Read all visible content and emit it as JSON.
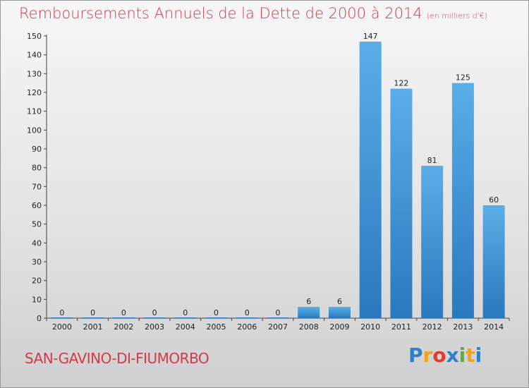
{
  "header": {
    "title": "Remboursements Annuels de la Dette de 2000 à 2014",
    "unit": "(en milliers d'€)"
  },
  "footer": {
    "commune": "SAN-GAVINO-DI-FIUMORBO",
    "logo": {
      "letters": [
        "P",
        "r",
        "o",
        "x",
        "i",
        "t",
        "i"
      ],
      "colors": [
        "#2e7fc9",
        "#f0a21c",
        "#e23a2e",
        "#2e7fc9",
        "#5cae3a",
        "#f0a21c",
        "#2e7fc9"
      ]
    }
  },
  "chart_data": {
    "type": "bar",
    "title": "Remboursements Annuels de la Dette de 2000 à 2014",
    "categories": [
      "2000",
      "2001",
      "2002",
      "2003",
      "2004",
      "2005",
      "2006",
      "2007",
      "2008",
      "2009",
      "2010",
      "2011",
      "2012",
      "2013",
      "2014"
    ],
    "values": [
      0,
      0,
      0,
      0,
      0,
      0,
      0,
      0,
      6,
      6,
      147,
      122,
      81,
      125,
      60
    ],
    "ylim": [
      0,
      150
    ],
    "yticks": [
      0,
      10,
      20,
      30,
      40,
      50,
      60,
      70,
      80,
      90,
      100,
      110,
      120,
      130,
      140,
      150
    ],
    "grid": false,
    "bar_color": "#3d8fd0"
  }
}
